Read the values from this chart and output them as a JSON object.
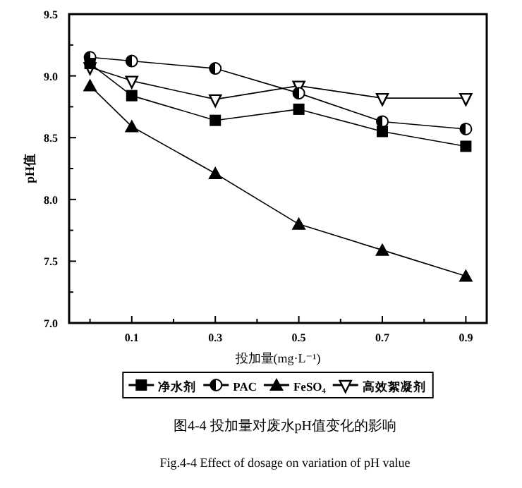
{
  "chart_data": {
    "type": "line",
    "xlabel": "投加量(mg·L⁻¹)",
    "ylabel": "pH值",
    "x": [
      0,
      0.1,
      0.3,
      0.5,
      0.7,
      0.9
    ],
    "series": [
      {
        "name": "净水剂",
        "color": "#000000",
        "marker": "square",
        "values": [
          9.1,
          8.84,
          8.64,
          8.73,
          8.55,
          8.43
        ]
      },
      {
        "name": "PAC",
        "color": "#000000",
        "marker": "circle",
        "values": [
          9.15,
          9.12,
          9.06,
          8.86,
          8.63,
          8.57
        ]
      },
      {
        "name": "FeSO₄",
        "color": "#000000",
        "marker": "triangle",
        "values": [
          8.92,
          8.59,
          8.21,
          7.8,
          7.59,
          7.38
        ]
      },
      {
        "name": "高效絮凝剂",
        "color": "#000000",
        "marker": "triangle-down",
        "values": [
          9.07,
          8.96,
          8.81,
          8.92,
          8.82,
          8.82
        ]
      }
    ],
    "xlim": [
      -0.05,
      0.95
    ],
    "xticks": [
      {
        "value": 0,
        "label": null
      },
      0.1,
      {
        "value": 0.2,
        "label": null
      },
      0.3,
      {
        "value": 0.4,
        "label": null
      },
      0.5,
      {
        "value": 0.6,
        "label": null
      },
      0.7,
      {
        "value": 0.8,
        "label": null
      },
      0.9
    ],
    "ylim": [
      7.0,
      9.5
    ],
    "yticks": [
      {
        "value": 7.0,
        "label": "7.0"
      },
      {
        "value": 7.25,
        "label": null
      },
      7.5,
      {
        "value": 7.75,
        "label": null
      },
      {
        "value": 8.0,
        "label": "8.0"
      },
      {
        "value": 8.25,
        "label": null
      },
      8.5,
      {
        "value": 8.75,
        "label": null
      },
      {
        "value": 9.0,
        "label": "9.0"
      },
      {
        "value": 9.25,
        "label": null
      },
      9.5
    ],
    "grid": false,
    "legend": "bottom",
    "line_style": "solid",
    "annotations": [
      "图4-4 投加量对废水pH值变化的影响",
      "Fig.4-4 Effect of dosage on variation of pH value"
    ]
  }
}
